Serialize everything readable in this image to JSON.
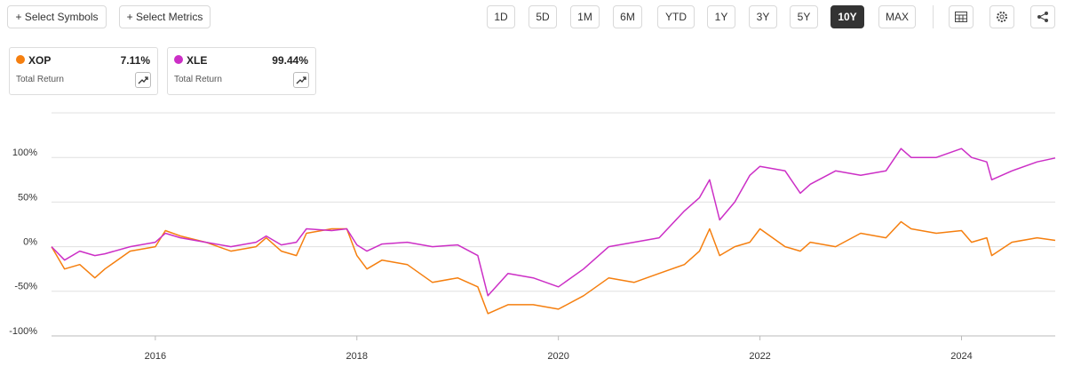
{
  "toolbar": {
    "buttons": [
      "+ Select Symbols",
      "+ Select Metrics"
    ],
    "periods": [
      "1D",
      "5D",
      "1M",
      "6M",
      "YTD",
      "1Y",
      "3Y",
      "5Y",
      "10Y",
      "MAX"
    ],
    "active_period": "10Y"
  },
  "chart_data": {
    "type": "line",
    "x": [
      2014.97,
      2015.1,
      2015.25,
      2015.4,
      2015.5,
      2015.75,
      2016.0,
      2016.1,
      2016.25,
      2016.5,
      2016.75,
      2017.0,
      2017.1,
      2017.25,
      2017.4,
      2017.5,
      2017.75,
      2017.9,
      2018.0,
      2018.1,
      2018.25,
      2018.5,
      2018.75,
      2019.0,
      2019.2,
      2019.3,
      2019.5,
      2019.75,
      2020.0,
      2020.25,
      2020.5,
      2020.75,
      2021.0,
      2021.25,
      2021.4,
      2021.5,
      2021.6,
      2021.75,
      2021.9,
      2022.0,
      2022.25,
      2022.4,
      2022.5,
      2022.75,
      2023.0,
      2023.25,
      2023.4,
      2023.5,
      2023.75,
      2024.0,
      2024.1,
      2024.25,
      2024.3,
      2024.5,
      2024.75,
      2024.93
    ],
    "series": [
      {
        "name": "XOP",
        "color": "#f57f0f",
        "metric": "Total Return",
        "total_return": {
          "value": 7.11,
          "label": "7.11%"
        },
        "values": [
          0,
          -25,
          -20,
          -35,
          -25,
          -5,
          0,
          18,
          12,
          5,
          -5,
          0,
          10,
          -5,
          -10,
          15,
          20,
          20,
          -10,
          -25,
          -15,
          -20,
          -40,
          -35,
          -45,
          -75,
          -65,
          -65,
          -70,
          -55,
          -35,
          -40,
          -30,
          -20,
          -5,
          20,
          -10,
          0,
          5,
          20,
          0,
          -5,
          5,
          0,
          15,
          10,
          28,
          20,
          15,
          18,
          5,
          10,
          -10,
          5,
          10,
          7.11
        ]
      },
      {
        "name": "XLE",
        "color": "#cc2fc6",
        "metric": "Total Return",
        "total_return": {
          "value": 99.44,
          "label": "99.44%"
        },
        "values": [
          0,
          -15,
          -5,
          -10,
          -8,
          0,
          5,
          15,
          10,
          5,
          0,
          5,
          12,
          2,
          5,
          20,
          18,
          20,
          2,
          -5,
          3,
          5,
          0,
          2,
          -10,
          -55,
          -30,
          -35,
          -45,
          -25,
          0,
          5,
          10,
          40,
          55,
          75,
          30,
          50,
          80,
          90,
          85,
          60,
          70,
          85,
          80,
          85,
          110,
          100,
          100,
          110,
          100,
          95,
          75,
          85,
          95,
          99.44
        ]
      }
    ],
    "xlim": [
      2014.97,
      2024.93
    ],
    "xticks": [
      2016,
      2018,
      2020,
      2022,
      2024
    ],
    "ylim": [
      -100,
      150
    ],
    "yticks": [
      {
        "value": -100,
        "label": "-100%"
      },
      {
        "value": -50,
        "label": "-50%"
      },
      {
        "value": 0,
        "label": "0%"
      },
      {
        "value": 50,
        "label": "50%"
      },
      {
        "value": 100,
        "label": "100%"
      }
    ],
    "grid": true
  }
}
